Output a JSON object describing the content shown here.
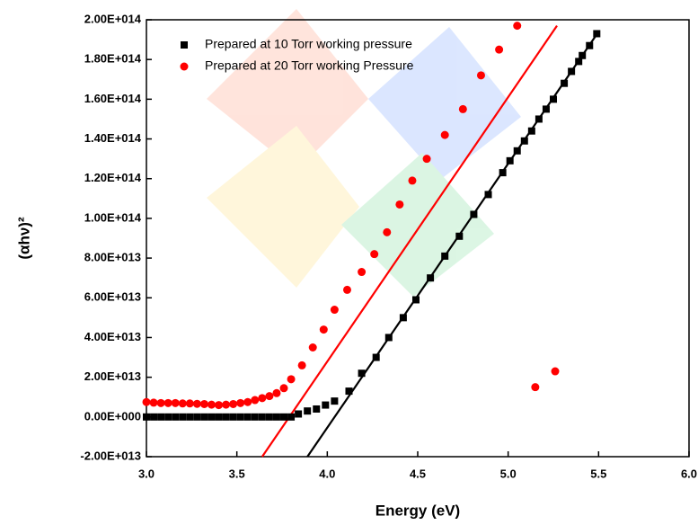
{
  "chart_data": {
    "type": "scatter",
    "xlabel": "Energy (eV)",
    "ylabel": "(αhν)²",
    "xlim": [
      3,
      6
    ],
    "xticks": [
      {
        "value": 3,
        "label": "3.0"
      },
      3.5,
      {
        "value": 4,
        "label": "4.0"
      },
      4.5,
      {
        "value": 5,
        "label": "5.0"
      },
      5.5,
      {
        "value": 6,
        "label": "6.0"
      }
    ],
    "ylim": [
      -20000000000000.0,
      200000000000000.0
    ],
    "yticks": [
      {
        "value": -20000000000000.0,
        "label": "-2.00E+013"
      },
      {
        "value": 0,
        "label": "0.00E+000"
      },
      {
        "value": 20000000000000.0,
        "label": "2.00E+013"
      },
      {
        "value": 40000000000000.0,
        "label": "4.00E+013"
      },
      {
        "value": 60000000000000.0,
        "label": "6.00E+013"
      },
      {
        "value": 80000000000000.0,
        "label": "8.00E+013"
      },
      {
        "value": 100000000000000.0,
        "label": "1.00E+014"
      },
      {
        "value": 120000000000000.0,
        "label": "1.20E+014"
      },
      {
        "value": 140000000000000.0,
        "label": "1.40E+014"
      },
      {
        "value": 160000000000000.0,
        "label": "1.60E+014"
      },
      {
        "value": 180000000000000.0,
        "label": "1.80E+014"
      },
      {
        "value": 200000000000000.0,
        "label": "2.00E+014"
      }
    ],
    "legend": "upper left",
    "series": [
      {
        "name": "Prepared at 10 Torr working pressure",
        "color": "#000000",
        "marker": "square",
        "x": [
          3.0,
          3.04,
          3.08,
          3.12,
          3.16,
          3.2,
          3.24,
          3.28,
          3.32,
          3.36,
          3.4,
          3.44,
          3.48,
          3.52,
          3.56,
          3.6,
          3.64,
          3.68,
          3.72,
          3.76,
          3.8,
          3.84,
          3.89,
          3.94,
          3.99,
          4.04,
          4.12,
          4.19,
          4.27,
          4.34,
          4.42,
          4.49,
          4.57,
          4.65,
          4.73,
          4.81,
          4.89,
          4.97,
          5.01,
          5.05,
          5.09,
          5.13,
          5.17,
          5.21,
          5.25,
          5.31,
          5.35,
          5.39,
          5.41,
          5.45,
          5.49
        ],
        "values": [
          0,
          0,
          0,
          0,
          0,
          0,
          0,
          0,
          0,
          0,
          0,
          0,
          0,
          0,
          0,
          0,
          0,
          0,
          0,
          0,
          0,
          1500000000000.0,
          3000000000000.0,
          4000000000000.0,
          6000000000000.0,
          8000000000000.0,
          13000000000000.0,
          22000000000000.0,
          30000000000000.0,
          40000000000000.0,
          50000000000000.0,
          59000000000000.0,
          70000000000000.0,
          81000000000000.0,
          91000000000000.0,
          102000000000000.0,
          112000000000000.0,
          123000000000000.0,
          129000000000000.0,
          134000000000000.0,
          139000000000000.0,
          144000000000000.0,
          150000000000000.0,
          155000000000000.0,
          160000000000000.0,
          168000000000000.0,
          174000000000000.0,
          179000000000000.0,
          182000000000000.0,
          187000000000000.0,
          193000000000000.0
        ]
      },
      {
        "name": "Prepared at 20 Torr working Pressure",
        "color": "#ff0000",
        "marker": "circle",
        "x": [
          3.0,
          3.04,
          3.08,
          3.12,
          3.16,
          3.2,
          3.24,
          3.28,
          3.32,
          3.36,
          3.4,
          3.44,
          3.48,
          3.52,
          3.56,
          3.6,
          3.64,
          3.68,
          3.72,
          3.76,
          3.8,
          3.86,
          3.92,
          3.98,
          4.04,
          4.11,
          4.19,
          4.26,
          4.33,
          4.4,
          4.47,
          4.55,
          4.65,
          4.75,
          4.85,
          4.95,
          5.05,
          5.15,
          5.26
        ],
        "values": [
          7500000000000.0,
          7200000000000.0,
          7000000000000.0,
          7000000000000.0,
          7000000000000.0,
          6800000000000.0,
          6800000000000.0,
          6600000000000.0,
          6500000000000.0,
          6200000000000.0,
          6000000000000.0,
          6200000000000.0,
          6500000000000.0,
          7000000000000.0,
          7500000000000.0,
          8500000000000.0,
          9500000000000.0,
          10500000000000.0,
          12000000000000.0,
          14500000000000.0,
          19000000000000.0,
          26000000000000.0,
          35000000000000.0,
          44000000000000.0,
          54000000000000.0,
          64000000000000.0,
          73000000000000.0,
          82000000000000.0,
          93000000000000.0,
          107000000000000.0,
          119000000000000.0,
          130000000000000.0,
          142000000000000.0,
          155000000000000.0,
          172000000000000.0,
          185000000000000.0,
          197000000000000.0,
          15000000000000.0,
          23000000000000.0
        ]
      }
    ],
    "fit_lines": [
      {
        "color": "#000000",
        "x": [
          3.89,
          5.5
        ],
        "values": [
          -20000000000000.0,
          194000000000000.0
        ]
      },
      {
        "color": "#ff0000",
        "x": [
          3.64,
          5.27
        ],
        "values": [
          -20000000000000.0,
          197000000000000.0
        ]
      }
    ]
  }
}
